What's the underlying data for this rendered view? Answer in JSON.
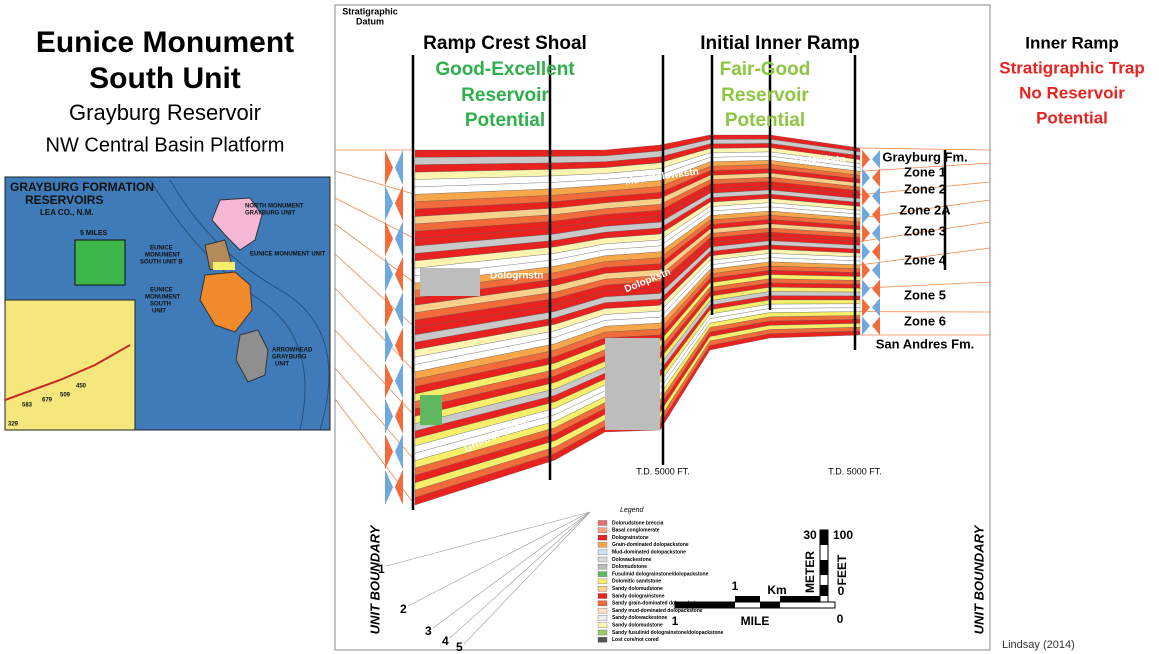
{
  "title": {
    "line1": "Eunice Monument",
    "line2": "South Unit",
    "line3": "Grayburg Reservoir",
    "line4": "NW Central Basin Platform"
  },
  "map": {
    "title1": "GRAYBURG FORMATION",
    "title2": "RESERVOIRS",
    "county": "LEA CO., N.M.",
    "scale": "5 MILES",
    "units": [
      "NORTH MONUMENT",
      "GRAYBURG UNIT",
      "EUNICE MONUMENT UNIT",
      "EUNICE",
      "MONUMENT",
      "SOUTH UNIT B",
      "EUNICE",
      "MONUMENT",
      "SOUTH",
      "UNIT",
      "ARROWHEAD",
      "GRAYBURG",
      "UNIT"
    ],
    "wells": [
      "450",
      "509",
      "679",
      "583",
      "329"
    ]
  },
  "section": {
    "datum1": "Stratigraphic",
    "datum2": "Datum",
    "headers": [
      {
        "name": "Ramp Crest Shoal",
        "potential": [
          "Good-Excellent",
          "Reservoir",
          "Potential"
        ]
      },
      {
        "name": "Initial Inner Ramp",
        "potential": [
          "Fair-Good",
          "Reservoir",
          "Potential"
        ]
      },
      {
        "name": "Inner Ramp",
        "potential": [
          "Stratigraphic Trap",
          "No Reservoir",
          "Potential"
        ]
      }
    ],
    "zones": [
      "Grayburg Fm.",
      "Zone 1",
      "Zone 2",
      "Zone 2A",
      "Zone 3",
      "Zone 4",
      "Zone 5",
      "Zone 6",
      "San Andres Fm."
    ],
    "facies": [
      "Mud-Dolowkstn",
      "Dolowkstn",
      "Dologrnstn",
      "Dolopkstn",
      "Grn-Dolopkstn"
    ],
    "td": [
      "T.D. 5000 FT.",
      "T.D. 5000 FT."
    ],
    "boundary": [
      "UNIT BOUNDARY",
      "UNIT BOUNDARY"
    ],
    "points": [
      "1",
      "2",
      "3",
      "4",
      "5"
    ],
    "legend_title": "Legend",
    "legend": [
      "Dolorudstone breccia",
      "Basal conglomerate",
      "Dolograinstone",
      "Grain-dominated dolopackstone",
      "Mud-dominated dolopackstone",
      "Dolowackestone",
      "Dolomudstone",
      "Fusulinid dolograinstone/dolopackstone",
      "Dolomitic sandstone",
      "Sandy dolomudstone",
      "Sandy dolograinstone",
      "Sandy grain-dominated dolopackstone",
      "Sandy mud-dominated dolopackstone",
      "Sandy dolowackestone",
      "Sandy dolomudstone",
      "Sandy fusulinid dolograinstone/dolopackstone",
      "Lost core/not cored"
    ],
    "scale": {
      "mile_left": "1",
      "mile": "MILE",
      "mile_zero": "0",
      "km_one": "1",
      "km": "Km",
      "meter_top": "30",
      "feet_top": "100",
      "meter": "METER",
      "feet": "FEET",
      "zero": "0"
    }
  },
  "credit": "Lindsay (2014)"
}
